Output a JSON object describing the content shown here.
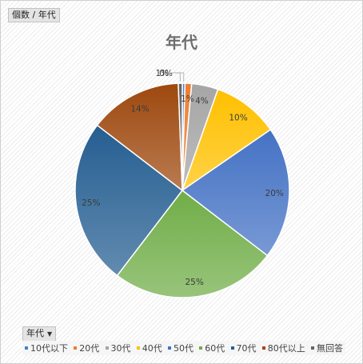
{
  "filter_button": {
    "label": "個数 / 年代"
  },
  "category_button": {
    "label": "年代"
  },
  "chart_data": {
    "type": "pie",
    "title": "年代",
    "categories": [
      "10代以下",
      "20代",
      "30代",
      "40代",
      "50代",
      "60代",
      "70代",
      "80代以上",
      "無回答"
    ],
    "values": [
      0.4,
      1,
      4,
      10,
      20,
      25,
      25,
      14,
      0.6
    ],
    "data_labels": [
      "0%",
      "1%",
      "4%",
      "10%",
      "20%",
      "25%",
      "25%",
      "14%",
      "1%"
    ],
    "colors": [
      "#4a7ec7",
      "#ed7d31",
      "#a5a5a5",
      "#ffc000",
      "#4472c4",
      "#70ad47",
      "#255e91",
      "#9e480e",
      "#636363"
    ],
    "legend_position": "bottom"
  }
}
